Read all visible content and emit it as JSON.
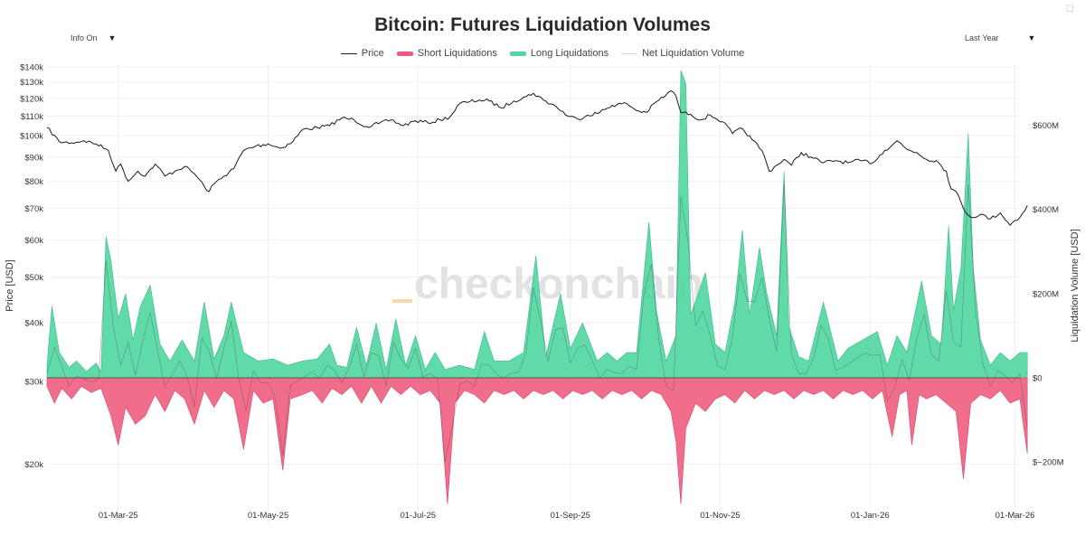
{
  "header": {
    "title": "Bitcoin: Futures Liquidation Volumes",
    "info_toggle": "Info On",
    "range_select": "Last Year",
    "watermark": "checkonchain"
  },
  "icons": {
    "dropdown": "chevron-down-icon",
    "corner": "square-icon"
  },
  "chart_data": {
    "type": "area",
    "title": "Bitcoin: Futures Liquidation Volumes",
    "legend": [
      {
        "name": "Price",
        "color": "#222222",
        "style": "line"
      },
      {
        "name": "Short Liquidations",
        "color": "#ee5d80",
        "style": "area"
      },
      {
        "name": "Long Liquidations",
        "color": "#50d6a0",
        "style": "area"
      },
      {
        "name": "Net Liquidation Volume",
        "color": "#d8d8d8",
        "style": "line"
      }
    ],
    "x_labels": [
      "01-Mar-25",
      "01-May-25",
      "01-Jul-25",
      "01-Sep-25",
      "01-Nov-25",
      "01-Jan-26",
      "01-Mar-26"
    ],
    "x_range": [
      "2025-01-31",
      "2026-03-03"
    ],
    "y_left": {
      "label": "Price [USD]",
      "scale": "log",
      "range": [
        17000,
        142000
      ],
      "ticks": [
        {
          "v": 140000,
          "t": "$140k"
        },
        {
          "v": 130000,
          "t": "$130k"
        },
        {
          "v": 120000,
          "t": "$120k"
        },
        {
          "v": 110000,
          "t": "$110k"
        },
        {
          "v": 100000,
          "t": "$100k"
        },
        {
          "v": 90000,
          "t": "$90k"
        },
        {
          "v": 80000,
          "t": "$80k"
        },
        {
          "v": 70000,
          "t": "$70k"
        },
        {
          "v": 60000,
          "t": "$60k"
        },
        {
          "v": 50000,
          "t": "$50k"
        },
        {
          "v": 40000,
          "t": "$40k"
        },
        {
          "v": 30000,
          "t": "$30k"
        },
        {
          "v": 20000,
          "t": "$20k"
        }
      ]
    },
    "y_right": {
      "label": "Liquidation Volume [USD]",
      "scale": "linear",
      "ticks": [
        {
          "v": 600,
          "t": "$600M"
        },
        {
          "v": 400,
          "t": "$400M"
        },
        {
          "v": 200,
          "t": "$200M"
        },
        {
          "v": 0,
          "t": "$0"
        },
        {
          "v": -200,
          "t": "$−200M"
        }
      ]
    },
    "price_series": [
      {
        "d": 0,
        "v": 104000
      },
      {
        "d": 5,
        "v": 97000
      },
      {
        "d": 10,
        "v": 96500
      },
      {
        "d": 15,
        "v": 97500
      },
      {
        "d": 20,
        "v": 96000
      },
      {
        "d": 25,
        "v": 93000
      },
      {
        "d": 28,
        "v": 84000
      },
      {
        "d": 30,
        "v": 87000
      },
      {
        "d": 33,
        "v": 80000
      },
      {
        "d": 37,
        "v": 84000
      },
      {
        "d": 40,
        "v": 82000
      },
      {
        "d": 44,
        "v": 87000
      },
      {
        "d": 48,
        "v": 82000
      },
      {
        "d": 52,
        "v": 84000
      },
      {
        "d": 56,
        "v": 86000
      },
      {
        "d": 60,
        "v": 83000
      },
      {
        "d": 64,
        "v": 78000
      },
      {
        "d": 66,
        "v": 76000
      },
      {
        "d": 68,
        "v": 79000
      },
      {
        "d": 72,
        "v": 82000
      },
      {
        "d": 76,
        "v": 85000
      },
      {
        "d": 80,
        "v": 93000
      },
      {
        "d": 85,
        "v": 95000
      },
      {
        "d": 90,
        "v": 96000
      },
      {
        "d": 95,
        "v": 94000
      },
      {
        "d": 100,
        "v": 97000
      },
      {
        "d": 104,
        "v": 103000
      },
      {
        "d": 110,
        "v": 104000
      },
      {
        "d": 115,
        "v": 105000
      },
      {
        "d": 120,
        "v": 109000
      },
      {
        "d": 125,
        "v": 108000
      },
      {
        "d": 130,
        "v": 104500
      },
      {
        "d": 135,
        "v": 106000
      },
      {
        "d": 140,
        "v": 108000
      },
      {
        "d": 145,
        "v": 105000
      },
      {
        "d": 150,
        "v": 107500
      },
      {
        "d": 155,
        "v": 106500
      },
      {
        "d": 160,
        "v": 108000
      },
      {
        "d": 164,
        "v": 109500
      },
      {
        "d": 168,
        "v": 117000
      },
      {
        "d": 172,
        "v": 118000
      },
      {
        "d": 176,
        "v": 119000
      },
      {
        "d": 180,
        "v": 118500
      },
      {
        "d": 185,
        "v": 114500
      },
      {
        "d": 190,
        "v": 118500
      },
      {
        "d": 195,
        "v": 121000
      },
      {
        "d": 198,
        "v": 123000
      },
      {
        "d": 202,
        "v": 119000
      },
      {
        "d": 207,
        "v": 115500
      },
      {
        "d": 212,
        "v": 110000
      },
      {
        "d": 216,
        "v": 108500
      },
      {
        "d": 220,
        "v": 110500
      },
      {
        "d": 225,
        "v": 112000
      },
      {
        "d": 230,
        "v": 116000
      },
      {
        "d": 236,
        "v": 117000
      },
      {
        "d": 240,
        "v": 113000
      },
      {
        "d": 244,
        "v": 112000
      },
      {
        "d": 248,
        "v": 118000
      },
      {
        "d": 252,
        "v": 122000
      },
      {
        "d": 254,
        "v": 124500
      },
      {
        "d": 256,
        "v": 121500
      },
      {
        "d": 258,
        "v": 112000
      },
      {
        "d": 262,
        "v": 111000
      },
      {
        "d": 266,
        "v": 108000
      },
      {
        "d": 270,
        "v": 110500
      },
      {
        "d": 275,
        "v": 107000
      },
      {
        "d": 279,
        "v": 101000
      },
      {
        "d": 283,
        "v": 103500
      },
      {
        "d": 287,
        "v": 98000
      },
      {
        "d": 291,
        "v": 93000
      },
      {
        "d": 294,
        "v": 84000
      },
      {
        "d": 297,
        "v": 86500
      },
      {
        "d": 300,
        "v": 89000
      },
      {
        "d": 303,
        "v": 86500
      },
      {
        "d": 307,
        "v": 92000
      },
      {
        "d": 311,
        "v": 90000
      },
      {
        "d": 316,
        "v": 87500
      },
      {
        "d": 321,
        "v": 88500
      },
      {
        "d": 326,
        "v": 87500
      },
      {
        "d": 331,
        "v": 88500
      },
      {
        "d": 336,
        "v": 87500
      },
      {
        "d": 341,
        "v": 93000
      },
      {
        "d": 346,
        "v": 97500
      },
      {
        "d": 350,
        "v": 93500
      },
      {
        "d": 354,
        "v": 92000
      },
      {
        "d": 358,
        "v": 89000
      },
      {
        "d": 362,
        "v": 88500
      },
      {
        "d": 366,
        "v": 84000
      },
      {
        "d": 368,
        "v": 77000
      },
      {
        "d": 370,
        "v": 76000
      },
      {
        "d": 373,
        "v": 70000
      },
      {
        "d": 376,
        "v": 67000
      },
      {
        "d": 380,
        "v": 68000
      },
      {
        "d": 384,
        "v": 66500
      },
      {
        "d": 388,
        "v": 68500
      },
      {
        "d": 392,
        "v": 64500
      },
      {
        "d": 394,
        "v": 66000
      },
      {
        "d": 396,
        "v": 67000
      },
      {
        "d": 399,
        "v": 71000
      }
    ],
    "long_liquidations_musd": [
      {
        "d": 0,
        "v": 30
      },
      {
        "d": 2,
        "v": 170
      },
      {
        "d": 5,
        "v": 60
      },
      {
        "d": 9,
        "v": 25
      },
      {
        "d": 12,
        "v": 40
      },
      {
        "d": 16,
        "v": 15
      },
      {
        "d": 20,
        "v": 35
      },
      {
        "d": 22,
        "v": 15
      },
      {
        "d": 24,
        "v": 335
      },
      {
        "d": 26,
        "v": 280
      },
      {
        "d": 29,
        "v": 140
      },
      {
        "d": 32,
        "v": 200
      },
      {
        "d": 35,
        "v": 90
      },
      {
        "d": 38,
        "v": 170
      },
      {
        "d": 42,
        "v": 220
      },
      {
        "d": 46,
        "v": 80
      },
      {
        "d": 50,
        "v": 40
      },
      {
        "d": 55,
        "v": 90
      },
      {
        "d": 60,
        "v": 40
      },
      {
        "d": 64,
        "v": 180
      },
      {
        "d": 68,
        "v": 45
      },
      {
        "d": 72,
        "v": 100
      },
      {
        "d": 75,
        "v": 180
      },
      {
        "d": 80,
        "v": 60
      },
      {
        "d": 86,
        "v": 40
      },
      {
        "d": 92,
        "v": 45
      },
      {
        "d": 98,
        "v": 30
      },
      {
        "d": 104,
        "v": 40
      },
      {
        "d": 110,
        "v": 45
      },
      {
        "d": 115,
        "v": 80
      },
      {
        "d": 118,
        "v": 30
      },
      {
        "d": 122,
        "v": 25
      },
      {
        "d": 126,
        "v": 120
      },
      {
        "d": 130,
        "v": 30
      },
      {
        "d": 134,
        "v": 130
      },
      {
        "d": 138,
        "v": 20
      },
      {
        "d": 142,
        "v": 140
      },
      {
        "d": 146,
        "v": 30
      },
      {
        "d": 150,
        "v": 100
      },
      {
        "d": 154,
        "v": 20
      },
      {
        "d": 158,
        "v": 60
      },
      {
        "d": 162,
        "v": 20
      },
      {
        "d": 168,
        "v": 30
      },
      {
        "d": 174,
        "v": 20
      },
      {
        "d": 178,
        "v": 110
      },
      {
        "d": 182,
        "v": 40
      },
      {
        "d": 188,
        "v": 40
      },
      {
        "d": 194,
        "v": 60
      },
      {
        "d": 199,
        "v": 290
      },
      {
        "d": 203,
        "v": 50
      },
      {
        "d": 209,
        "v": 200
      },
      {
        "d": 213,
        "v": 70
      },
      {
        "d": 218,
        "v": 130
      },
      {
        "d": 224,
        "v": 40
      },
      {
        "d": 228,
        "v": 60
      },
      {
        "d": 232,
        "v": 40
      },
      {
        "d": 236,
        "v": 60
      },
      {
        "d": 240,
        "v": 60
      },
      {
        "d": 245,
        "v": 370
      },
      {
        "d": 248,
        "v": 160
      },
      {
        "d": 252,
        "v": 40
      },
      {
        "d": 256,
        "v": 100
      },
      {
        "d": 258,
        "v": 730
      },
      {
        "d": 260,
        "v": 700
      },
      {
        "d": 262,
        "v": 150
      },
      {
        "d": 265,
        "v": 200
      },
      {
        "d": 268,
        "v": 250
      },
      {
        "d": 272,
        "v": 80
      },
      {
        "d": 276,
        "v": 60
      },
      {
        "d": 280,
        "v": 180
      },
      {
        "d": 283,
        "v": 350
      },
      {
        "d": 286,
        "v": 150
      },
      {
        "d": 290,
        "v": 310
      },
      {
        "d": 293,
        "v": 200
      },
      {
        "d": 297,
        "v": 100
      },
      {
        "d": 300,
        "v": 490
      },
      {
        "d": 302,
        "v": 120
      },
      {
        "d": 306,
        "v": 50
      },
      {
        "d": 310,
        "v": 40
      },
      {
        "d": 316,
        "v": 180
      },
      {
        "d": 322,
        "v": 40
      },
      {
        "d": 326,
        "v": 70
      },
      {
        "d": 332,
        "v": 90
      },
      {
        "d": 338,
        "v": 110
      },
      {
        "d": 342,
        "v": 30
      },
      {
        "d": 346,
        "v": 100
      },
      {
        "d": 350,
        "v": 60
      },
      {
        "d": 356,
        "v": 230
      },
      {
        "d": 360,
        "v": 100
      },
      {
        "d": 364,
        "v": 80
      },
      {
        "d": 367,
        "v": 360
      },
      {
        "d": 369,
        "v": 160
      },
      {
        "d": 372,
        "v": 260
      },
      {
        "d": 375,
        "v": 580
      },
      {
        "d": 377,
        "v": 260
      },
      {
        "d": 380,
        "v": 90
      },
      {
        "d": 384,
        "v": 30
      },
      {
        "d": 388,
        "v": 60
      },
      {
        "d": 392,
        "v": 40
      },
      {
        "d": 396,
        "v": 60
      },
      {
        "d": 399,
        "v": 60
      }
    ],
    "short_liquidations_musd": [
      {
        "d": 0,
        "v": -20
      },
      {
        "d": 3,
        "v": -60
      },
      {
        "d": 6,
        "v": -25
      },
      {
        "d": 10,
        "v": -50
      },
      {
        "d": 14,
        "v": -20
      },
      {
        "d": 18,
        "v": -35
      },
      {
        "d": 22,
        "v": -25
      },
      {
        "d": 26,
        "v": -90
      },
      {
        "d": 29,
        "v": -160
      },
      {
        "d": 32,
        "v": -70
      },
      {
        "d": 36,
        "v": -110
      },
      {
        "d": 40,
        "v": -90
      },
      {
        "d": 44,
        "v": -40
      },
      {
        "d": 48,
        "v": -80
      },
      {
        "d": 52,
        "v": -30
      },
      {
        "d": 56,
        "v": -50
      },
      {
        "d": 60,
        "v": -110
      },
      {
        "d": 64,
        "v": -30
      },
      {
        "d": 68,
        "v": -70
      },
      {
        "d": 72,
        "v": -30
      },
      {
        "d": 76,
        "v": -50
      },
      {
        "d": 80,
        "v": -170
      },
      {
        "d": 84,
        "v": -30
      },
      {
        "d": 88,
        "v": -60
      },
      {
        "d": 92,
        "v": -50
      },
      {
        "d": 96,
        "v": -220
      },
      {
        "d": 99,
        "v": -50
      },
      {
        "d": 104,
        "v": -40
      },
      {
        "d": 108,
        "v": -30
      },
      {
        "d": 112,
        "v": -60
      },
      {
        "d": 116,
        "v": -25
      },
      {
        "d": 120,
        "v": -40
      },
      {
        "d": 124,
        "v": -20
      },
      {
        "d": 128,
        "v": -60
      },
      {
        "d": 132,
        "v": -20
      },
      {
        "d": 136,
        "v": -60
      },
      {
        "d": 140,
        "v": -20
      },
      {
        "d": 144,
        "v": -40
      },
      {
        "d": 148,
        "v": -20
      },
      {
        "d": 152,
        "v": -40
      },
      {
        "d": 156,
        "v": -30
      },
      {
        "d": 160,
        "v": -60
      },
      {
        "d": 163,
        "v": -300
      },
      {
        "d": 166,
        "v": -60
      },
      {
        "d": 170,
        "v": -30
      },
      {
        "d": 174,
        "v": -40
      },
      {
        "d": 178,
        "v": -60
      },
      {
        "d": 182,
        "v": -30
      },
      {
        "d": 186,
        "v": -40
      },
      {
        "d": 190,
        "v": -30
      },
      {
        "d": 194,
        "v": -50
      },
      {
        "d": 198,
        "v": -30
      },
      {
        "d": 202,
        "v": -40
      },
      {
        "d": 206,
        "v": -30
      },
      {
        "d": 210,
        "v": -50
      },
      {
        "d": 214,
        "v": -30
      },
      {
        "d": 218,
        "v": -40
      },
      {
        "d": 222,
        "v": -30
      },
      {
        "d": 226,
        "v": -50
      },
      {
        "d": 230,
        "v": -30
      },
      {
        "d": 234,
        "v": -40
      },
      {
        "d": 238,
        "v": -30
      },
      {
        "d": 242,
        "v": -50
      },
      {
        "d": 246,
        "v": -30
      },
      {
        "d": 250,
        "v": -40
      },
      {
        "d": 254,
        "v": -80
      },
      {
        "d": 256,
        "v": -150
      },
      {
        "d": 258,
        "v": -300
      },
      {
        "d": 260,
        "v": -120
      },
      {
        "d": 264,
        "v": -60
      },
      {
        "d": 268,
        "v": -80
      },
      {
        "d": 272,
        "v": -50
      },
      {
        "d": 276,
        "v": -40
      },
      {
        "d": 280,
        "v": -60
      },
      {
        "d": 284,
        "v": -30
      },
      {
        "d": 288,
        "v": -50
      },
      {
        "d": 292,
        "v": -30
      },
      {
        "d": 296,
        "v": -40
      },
      {
        "d": 300,
        "v": -30
      },
      {
        "d": 304,
        "v": -50
      },
      {
        "d": 308,
        "v": -30
      },
      {
        "d": 312,
        "v": -40
      },
      {
        "d": 316,
        "v": -30
      },
      {
        "d": 320,
        "v": -50
      },
      {
        "d": 324,
        "v": -30
      },
      {
        "d": 328,
        "v": -40
      },
      {
        "d": 332,
        "v": -30
      },
      {
        "d": 336,
        "v": -50
      },
      {
        "d": 340,
        "v": -30
      },
      {
        "d": 344,
        "v": -140
      },
      {
        "d": 347,
        "v": -40
      },
      {
        "d": 350,
        "v": -30
      },
      {
        "d": 352,
        "v": -160
      },
      {
        "d": 355,
        "v": -40
      },
      {
        "d": 358,
        "v": -50
      },
      {
        "d": 362,
        "v": -40
      },
      {
        "d": 366,
        "v": -60
      },
      {
        "d": 370,
        "v": -80
      },
      {
        "d": 373,
        "v": -240
      },
      {
        "d": 376,
        "v": -60
      },
      {
        "d": 380,
        "v": -40
      },
      {
        "d": 384,
        "v": -50
      },
      {
        "d": 388,
        "v": -30
      },
      {
        "d": 392,
        "v": -60
      },
      {
        "d": 396,
        "v": -50
      },
      {
        "d": 399,
        "v": -180
      }
    ]
  }
}
